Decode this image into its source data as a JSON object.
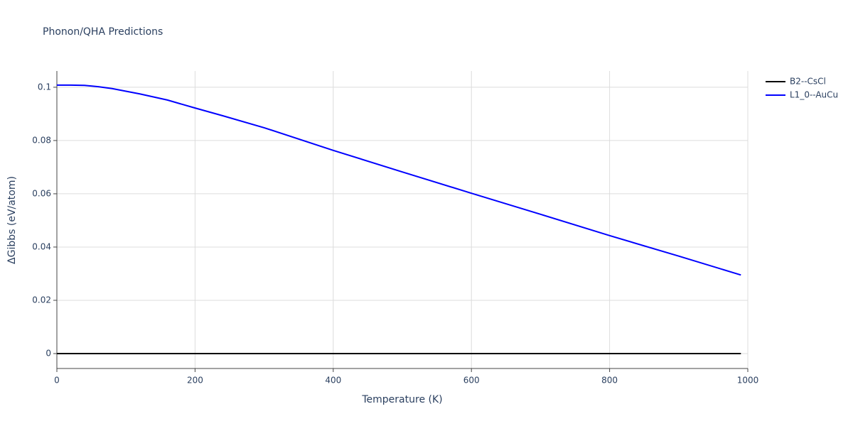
{
  "chart_data": {
    "type": "line",
    "title": "Phonon/QHA Predictions",
    "x_label": "Temperature (K)",
    "y_label": "ΔGibbs (eV/atom)",
    "x": [
      0,
      20,
      40,
      60,
      80,
      100,
      120,
      160,
      200,
      240,
      300,
      400,
      500,
      600,
      700,
      800,
      900,
      990
    ],
    "series": [
      {
        "name": "B2--CsCl",
        "color": "#000000",
        "values": [
          0,
          0,
          0,
          0,
          0,
          0,
          0,
          0,
          0,
          0,
          0,
          0,
          0,
          0,
          0,
          0,
          0,
          0
        ]
      },
      {
        "name": "L1_0--AuCu",
        "color": "#0000ff",
        "values": [
          0.1008,
          0.1008,
          0.1007,
          0.1002,
          0.0995,
          0.0985,
          0.0975,
          0.0952,
          0.0922,
          0.0893,
          0.0848,
          0.0763,
          0.0682,
          0.0602,
          0.0523,
          0.0443,
          0.0366,
          0.0295
        ]
      }
    ],
    "xlim": [
      0,
      1000
    ],
    "xticks": [
      0,
      200,
      400,
      600,
      800,
      1000
    ],
    "ylim": [
      -0.0056,
      0.1061
    ],
    "yticks": [
      0,
      0.02,
      0.04,
      0.06,
      0.08,
      0.1
    ],
    "grid": true,
    "legend": "top-right"
  }
}
